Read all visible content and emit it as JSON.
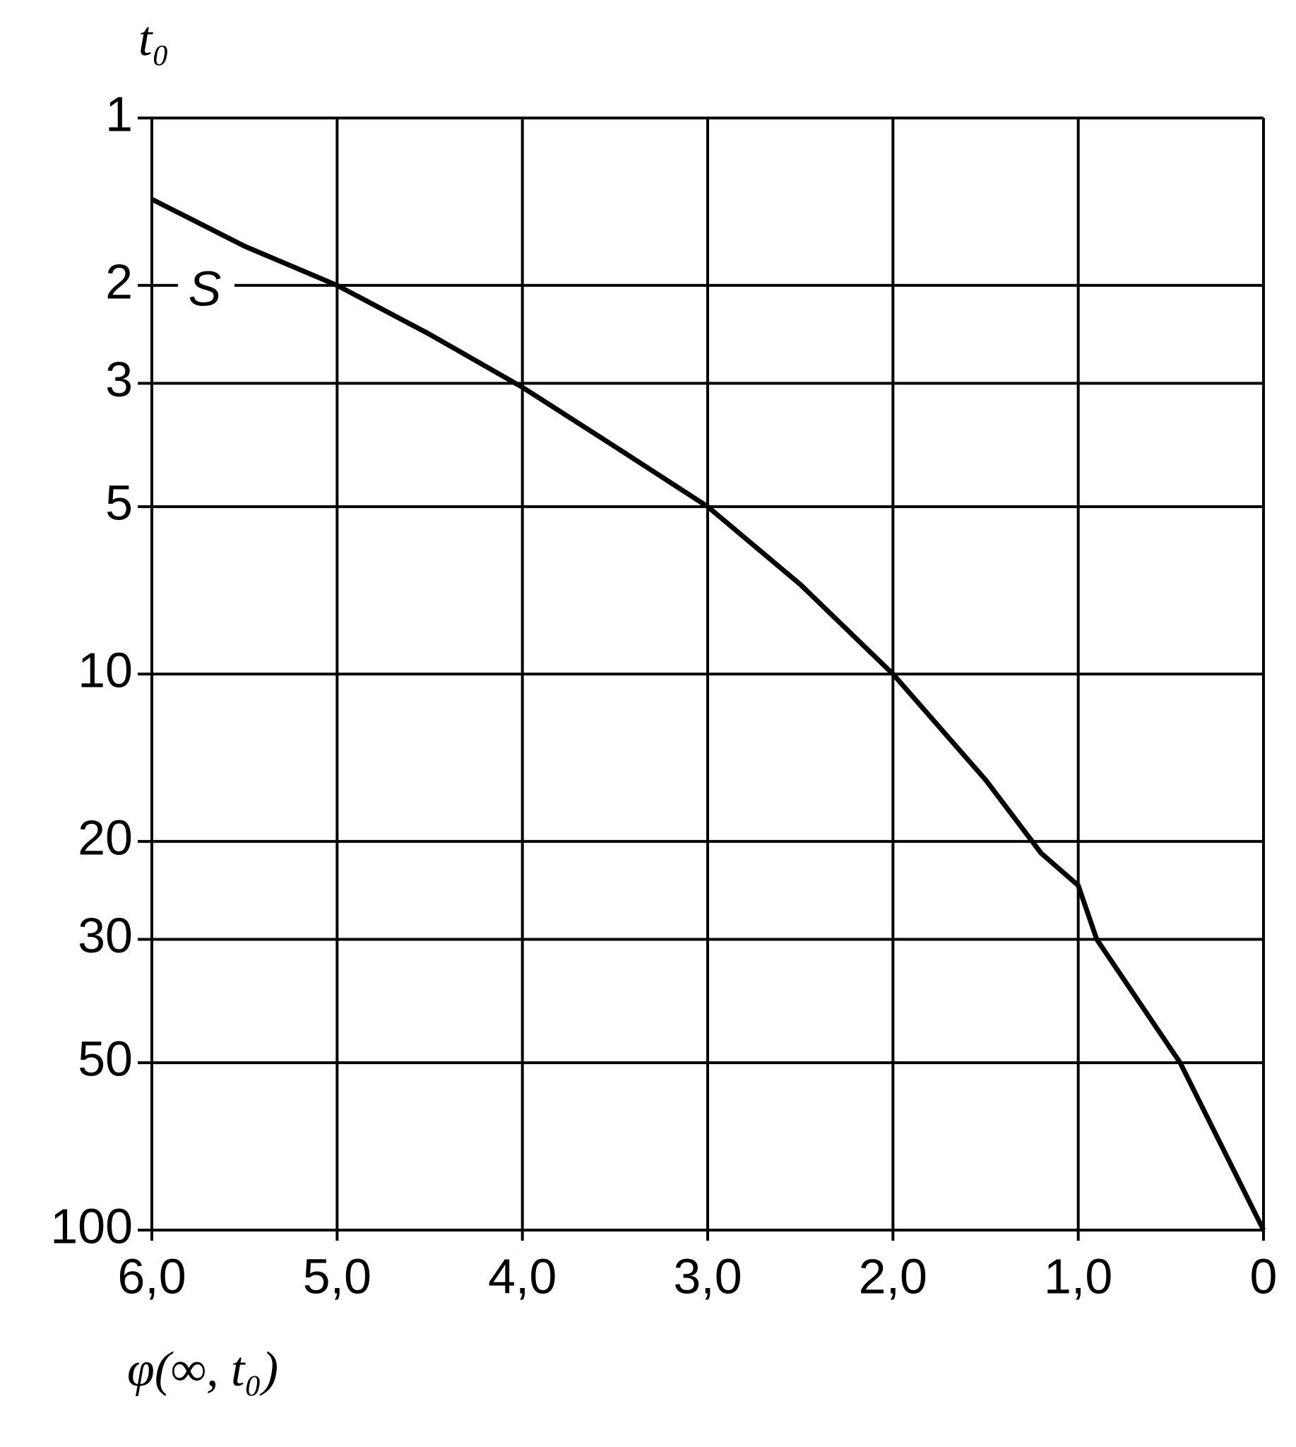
{
  "chart_data": {
    "type": "line",
    "ylabel": "t₀",
    "xlabel": "φ(∞, t₀)",
    "annotation": "S",
    "x": [
      6.0,
      5.5,
      5.0,
      4.5,
      4.0,
      3.5,
      3.0,
      2.5,
      2.0,
      1.5,
      1.2,
      1.0,
      0.9,
      0.45,
      0
    ],
    "series": [
      {
        "color": "#000000",
        "values": [
          1.4,
          1.7,
          2.0,
          2.45,
          3.05,
          3.9,
          5.0,
          6.9,
          10,
          15.5,
          21,
          24,
          30,
          50,
          100
        ]
      }
    ],
    "xlim": [
      6.0,
      0
    ],
    "xticks": [
      {
        "value": 6.0,
        "label": "6,0"
      },
      {
        "value": 5.0,
        "label": "5,0"
      },
      {
        "value": 4.0,
        "label": "4,0"
      },
      {
        "value": 3.0,
        "label": "3,0"
      },
      {
        "value": 2.0,
        "label": "2,0"
      },
      {
        "value": 1.0,
        "label": "1,0"
      },
      0
    ],
    "ylim": [
      1,
      100
    ],
    "yticks": [
      1,
      2,
      3,
      5,
      10,
      20,
      30,
      50,
      100
    ],
    "ylog": true,
    "grid": true
  }
}
